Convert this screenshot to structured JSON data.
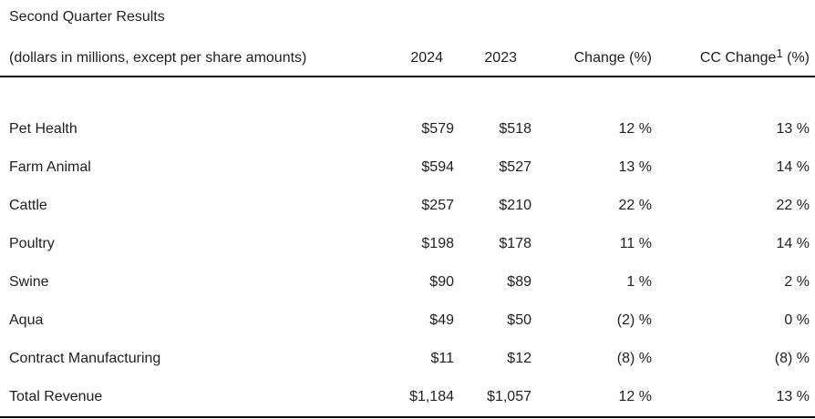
{
  "page": {
    "background": "#ffffff",
    "text_color": "#1f1f1f",
    "rule_color": "#000000"
  },
  "table": {
    "title": "Second Quarter Results",
    "header": {
      "label": "(dollars in millions, except per share amounts)",
      "col_2024": "2024",
      "col_2023": "2023",
      "col_change": "Change (%)",
      "col_cc_change_text": "CC Change",
      "col_cc_change_superscript": "1",
      "col_cc_change_unit": " (%)"
    },
    "rows": [
      {
        "label": "Pet Health",
        "y2024": "$579",
        "y2023": "$518",
        "change": "12 %",
        "cc_change": "13 %"
      },
      {
        "label": "Farm Animal",
        "y2024": "$594",
        "y2023": "$527",
        "change": "13 %",
        "cc_change": "14 %"
      },
      {
        "label": "Cattle",
        "y2024": "$257",
        "y2023": "$210",
        "change": "22 %",
        "cc_change": "22 %"
      },
      {
        "label": "Poultry",
        "y2024": "$198",
        "y2023": "$178",
        "change": "11 %",
        "cc_change": "14 %"
      },
      {
        "label": "Swine",
        "y2024": "$90",
        "y2023": "$89",
        "change": "1 %",
        "cc_change": "2 %"
      },
      {
        "label": "Aqua",
        "y2024": "$49",
        "y2023": "$50",
        "change": "(2) %",
        "cc_change": "0 %"
      },
      {
        "label": "Contract Manufacturing",
        "y2024": "$11",
        "y2023": "$12",
        "change": "(8) %",
        "cc_change": "(8) %"
      },
      {
        "label": "Total Revenue",
        "y2024": "$1,184",
        "y2023": "$1,057",
        "change": "12 %",
        "cc_change": "13 %"
      }
    ]
  },
  "chart_data": {
    "type": "table",
    "title": "Second Quarter Results",
    "subtitle": "(dollars in millions, except per share amounts)",
    "columns": [
      "(dollars in millions, except per share amounts)",
      "2024",
      "2023",
      "Change (%)",
      "CC Change1 (%)"
    ],
    "rows": [
      [
        "Pet Health",
        "$579",
        "$518",
        "12 %",
        "13 %"
      ],
      [
        "Farm Animal",
        "$594",
        "$527",
        "13 %",
        "14 %"
      ],
      [
        "Cattle",
        "$257",
        "$210",
        "22 %",
        "22 %"
      ],
      [
        "Poultry",
        "$198",
        "$178",
        "11 %",
        "14 %"
      ],
      [
        "Swine",
        "$90",
        "$89",
        "1 %",
        "2 %"
      ],
      [
        "Aqua",
        "$49",
        "$50",
        "(2) %",
        "0 %"
      ],
      [
        "Contract Manufacturing",
        "$11",
        "$12",
        "(8) %",
        "(8) %"
      ],
      [
        "Total Revenue",
        "$1,184",
        "$1,057",
        "12 %",
        "13 %"
      ]
    ]
  }
}
